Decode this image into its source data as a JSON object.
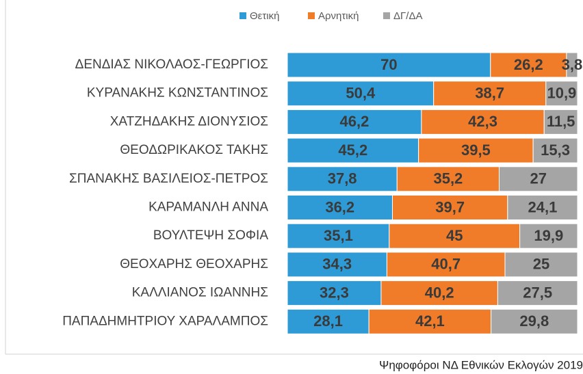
{
  "chart_data": {
    "type": "stacked-barh",
    "categories": [
      "ΔΕΝΔΙΑΣ ΝΙΚΟΛΑΟΣ-ΓΕΩΡΓΙΟΣ",
      "ΚΥΡΑΝΑΚΗΣ ΚΩΝΣΤΑΝΤΙΝΟΣ",
      "ΧΑΤΖΗΔΑΚΗΣ ΔΙΟΝΥΣΙΟΣ",
      "ΘΕΟΔΩΡΙΚΑΚΟΣ ΤΑΚΗΣ",
      "ΣΠΑΝΑΚΗΣ ΒΑΣΙΛΕΙΟΣ-ΠΕΤΡΟΣ",
      "ΚΑΡΑΜΑΝΛΗ ΑΝΝΑ",
      "ΒΟΥΛΤΕΨΗ ΣΟΦΙΑ",
      "ΘΕΟΧΑΡΗΣ ΘΕΟΧΑΡΗΣ",
      "ΚΑΛΛΙΑΝΟΣ ΙΩΑΝΝΗΣ",
      "ΠΑΠΑΔΗΜΗΤΡΙΟΥ ΧΑΡΑΛΑΜΠΟΣ"
    ],
    "series": [
      {
        "name": "Θετική",
        "color": "#2e9bd6",
        "values": [
          70,
          50.4,
          46.2,
          45.2,
          37.8,
          36.2,
          35.1,
          34.3,
          32.3,
          28.1
        ],
        "value_labels": [
          "70",
          "50,4",
          "46,2",
          "45,2",
          "37,8",
          "36,2",
          "35,1",
          "34,3",
          "32,3",
          "28,1"
        ]
      },
      {
        "name": "Αρνητική",
        "color": "#f07c2a",
        "values": [
          26.2,
          38.7,
          42.3,
          39.5,
          35.2,
          39.7,
          45,
          40.7,
          40.2,
          42.1
        ],
        "value_labels": [
          "26,2",
          "38,7",
          "42,3",
          "39,5",
          "35,2",
          "39,7",
          "45",
          "40,7",
          "40,2",
          "42,1"
        ]
      },
      {
        "name": "ΔΓ/ΔΑ",
        "color": "#a5a5a5",
        "values": [
          3.8,
          10.9,
          11.5,
          15.3,
          27,
          24.1,
          19.9,
          25,
          27.5,
          29.8
        ],
        "value_labels": [
          "3,8",
          "10,9",
          "11,5",
          "15,3",
          "27",
          "24,1",
          "19,9",
          "25",
          "27,5",
          "29,8"
        ]
      }
    ],
    "xlim": [
      0,
      100
    ],
    "source": "Ψηφοφόροι ΝΔ Εθνικών Εκλογών 2019"
  }
}
